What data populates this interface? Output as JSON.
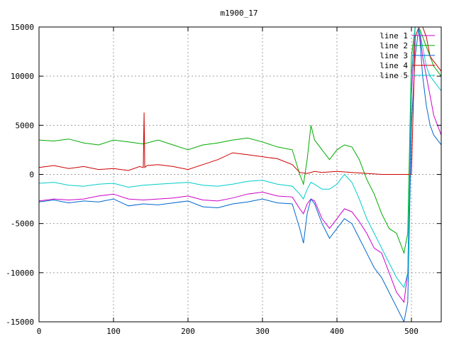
{
  "chart_data": {
    "type": "line",
    "title": "m1900_17",
    "xlabel": "",
    "ylabel": "",
    "xlim": [
      0,
      540
    ],
    "ylim": [
      -15000,
      15000
    ],
    "xticks": [
      0,
      100,
      200,
      300,
      400,
      500
    ],
    "yticks": [
      -15000,
      -10000,
      -5000,
      0,
      5000,
      10000,
      15000
    ],
    "xtick_labels": [
      "0",
      "100",
      "200",
      "300",
      "400",
      "500"
    ],
    "ytick_labels": [
      "-15000",
      "-10000",
      "-5000",
      "0",
      "5000",
      "10000",
      "15000"
    ],
    "grid": true,
    "legend_position": "top-right",
    "series": [
      {
        "name": "line 1",
        "color": "#cc00cc",
        "x": [
          0,
          20,
          40,
          60,
          80,
          100,
          120,
          140,
          160,
          180,
          200,
          220,
          240,
          260,
          280,
          300,
          320,
          340,
          350,
          355,
          360,
          365,
          370,
          380,
          390,
          400,
          410,
          420,
          430,
          440,
          450,
          460,
          470,
          480,
          490,
          495,
          500,
          505,
          510,
          515,
          520,
          525,
          530,
          535,
          540
        ],
        "y": [
          -2700,
          -2500,
          -2600,
          -2500,
          -2200,
          -2000,
          -2500,
          -2600,
          -2500,
          -2400,
          -2200,
          -2600,
          -2700,
          -2400,
          -2000,
          -1800,
          -2200,
          -2300,
          -3500,
          -4000,
          -3000,
          -2500,
          -2700,
          -4500,
          -5500,
          -4500,
          -3500,
          -3800,
          -4800,
          -6000,
          -7500,
          -8000,
          -10000,
          -12000,
          -13000,
          -10000,
          8000,
          15000,
          15000,
          12000,
          10000,
          8000,
          6000,
          5000,
          4000
        ]
      },
      {
        "name": "line 2",
        "color": "#00aa00",
        "x": [
          0,
          20,
          40,
          60,
          80,
          100,
          120,
          140,
          160,
          180,
          200,
          220,
          240,
          260,
          280,
          300,
          320,
          340,
          350,
          355,
          360,
          365,
          370,
          380,
          390,
          400,
          410,
          420,
          430,
          440,
          450,
          460,
          470,
          480,
          490,
          495,
          500,
          505,
          510,
          515,
          520,
          525,
          530,
          535,
          540
        ],
        "y": [
          3500,
          3400,
          3600,
          3200,
          3000,
          3500,
          3300,
          3100,
          3500,
          3000,
          2500,
          3000,
          3200,
          3500,
          3700,
          3300,
          2800,
          2500,
          0,
          -1000,
          1500,
          5000,
          3500,
          2500,
          1500,
          2500,
          3000,
          2800,
          1500,
          -500,
          -2000,
          -4000,
          -5500,
          -6000,
          -8000,
          -6000,
          12000,
          15000,
          15000,
          14000,
          13000,
          12000,
          11000,
          10500,
          10000
        ]
      },
      {
        "name": "line 3",
        "color": "#0066cc",
        "x": [
          0,
          20,
          40,
          60,
          80,
          100,
          120,
          140,
          160,
          180,
          200,
          220,
          240,
          260,
          280,
          300,
          320,
          340,
          350,
          355,
          360,
          365,
          370,
          380,
          390,
          400,
          410,
          420,
          430,
          440,
          450,
          460,
          470,
          480,
          490,
          495,
          500,
          505,
          510,
          515,
          520,
          525,
          530,
          535,
          540
        ],
        "y": [
          -2800,
          -2600,
          -2900,
          -2700,
          -2800,
          -2500,
          -3200,
          -3000,
          -3100,
          -2900,
          -2700,
          -3300,
          -3400,
          -3000,
          -2800,
          -2500,
          -2900,
          -3000,
          -5500,
          -7000,
          -4000,
          -2500,
          -3000,
          -5000,
          -6500,
          -5500,
          -4500,
          -5000,
          -6500,
          -8000,
          -9500,
          -10500,
          -12000,
          -13500,
          -15000,
          -13000,
          5000,
          12000,
          15000,
          10000,
          7000,
          5000,
          4000,
          3500,
          3000
        ]
      },
      {
        "name": "line 4",
        "color": "#cc0000",
        "x": [
          0,
          20,
          40,
          60,
          80,
          100,
          120,
          135,
          140,
          141,
          142,
          145,
          160,
          180,
          200,
          220,
          240,
          260,
          280,
          300,
          320,
          340,
          350,
          360,
          370,
          380,
          400,
          420,
          440,
          460,
          480,
          495,
          500,
          505,
          510,
          515,
          520,
          525,
          530,
          535,
          540
        ],
        "y": [
          700,
          900,
          600,
          800,
          500,
          600,
          400,
          800,
          700,
          6300,
          700,
          900,
          1000,
          800,
          500,
          1000,
          1500,
          2200,
          2000,
          1800,
          1600,
          1000,
          200,
          100,
          300,
          200,
          300,
          200,
          100,
          0,
          0,
          0,
          0,
          14000,
          15000,
          15000,
          14000,
          12000,
          11500,
          11000,
          10500
        ]
      },
      {
        "name": "line 5",
        "color": "#00cccc",
        "x": [
          0,
          20,
          40,
          60,
          80,
          100,
          120,
          140,
          160,
          180,
          200,
          220,
          240,
          260,
          280,
          300,
          320,
          340,
          350,
          355,
          360,
          365,
          370,
          380,
          390,
          400,
          410,
          420,
          430,
          440,
          450,
          460,
          470,
          480,
          490,
          495,
          500,
          505,
          510,
          515,
          520,
          525,
          530,
          535,
          540
        ],
        "y": [
          -900,
          -800,
          -1100,
          -1200,
          -1000,
          -900,
          -1300,
          -1100,
          -1000,
          -900,
          -800,
          -1100,
          -1200,
          -1000,
          -700,
          -600,
          -1000,
          -1200,
          -2000,
          -2500,
          -1500,
          -800,
          -1000,
          -1500,
          -1500,
          -1000,
          0,
          -800,
          -2500,
          -4500,
          -6000,
          -7500,
          -9000,
          -10500,
          -11500,
          -10000,
          10000,
          15000,
          15000,
          13000,
          11000,
          10000,
          9500,
          9000,
          8500
        ]
      }
    ]
  }
}
